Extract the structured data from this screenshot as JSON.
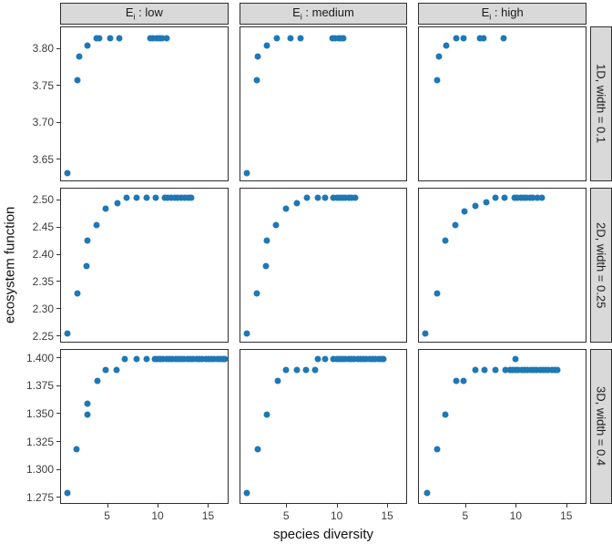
{
  "chart_data": {
    "type": "scatter",
    "x_label": "species diversity",
    "y_label": "ecosystem function",
    "point_color": "#1f78b4",
    "grid": "off",
    "legend": "none",
    "x_range": [
      0.35,
      17.0
    ],
    "x_ticks": [
      5,
      10,
      15
    ],
    "facet_cols": [
      {
        "base": "E",
        "sub": "i",
        "rest": " : low"
      },
      {
        "base": "E",
        "sub": "i",
        "rest": " : medium"
      },
      {
        "base": "E",
        "sub": "i",
        "rest": " : high"
      }
    ],
    "facet_rows": [
      {
        "label": "1D, width = 0.1",
        "y_range": [
          3.62,
          3.83
        ],
        "y_ticks": [
          "3.65",
          "3.70",
          "3.75",
          "3.80"
        ]
      },
      {
        "label": "2D, width = 0.25",
        "y_range": [
          2.238,
          2.522
        ],
        "y_ticks": [
          "2.25",
          "2.30",
          "2.35",
          "2.40",
          "2.45",
          "2.50"
        ]
      },
      {
        "label": "3D, width = 0.4",
        "y_range": [
          1.269,
          1.408
        ],
        "y_ticks": [
          "1.275",
          "1.300",
          "1.325",
          "1.350",
          "1.375",
          "1.400"
        ]
      }
    ],
    "panels": [
      {
        "row": 0,
        "col": 0,
        "points": [
          [
            1,
            3.63
          ],
          [
            2,
            3.757
          ],
          [
            2.2,
            3.79
          ],
          [
            3,
            3.805
          ],
          [
            3.9,
            3.815
          ],
          [
            4.2,
            3.815
          ],
          [
            5.3,
            3.815
          ],
          [
            6.2,
            3.815
          ],
          [
            9.3,
            3.815
          ],
          [
            9.6,
            3.815
          ],
          [
            9.9,
            3.815
          ],
          [
            10.2,
            3.815
          ],
          [
            10.5,
            3.815
          ],
          [
            10.9,
            3.815
          ]
        ]
      },
      {
        "row": 0,
        "col": 1,
        "points": [
          [
            1,
            3.63
          ],
          [
            2,
            3.757
          ],
          [
            2.1,
            3.79
          ],
          [
            3,
            3.805
          ],
          [
            4,
            3.815
          ],
          [
            5.4,
            3.815
          ],
          [
            6.4,
            3.815
          ],
          [
            9.6,
            3.815
          ],
          [
            9.9,
            3.815
          ],
          [
            10.2,
            3.815
          ],
          [
            10.4,
            3.815
          ],
          [
            10.7,
            3.815
          ]
        ]
      },
      {
        "row": 0,
        "col": 2,
        "points": [
          [
            2.1,
            3.757
          ],
          [
            2.3,
            3.79
          ],
          [
            3.1,
            3.805
          ],
          [
            4.1,
            3.815
          ],
          [
            4.8,
            3.815
          ],
          [
            6.4,
            3.815
          ],
          [
            6.8,
            3.815
          ],
          [
            8.8,
            3.815
          ]
        ]
      },
      {
        "row": 1,
        "col": 0,
        "points": [
          [
            1,
            2.253
          ],
          [
            2,
            2.328
          ],
          [
            2.9,
            2.378
          ],
          [
            3,
            2.425
          ],
          [
            3.9,
            2.455
          ],
          [
            4.8,
            2.485
          ],
          [
            6,
            2.495
          ],
          [
            6.9,
            2.505
          ],
          [
            7.9,
            2.505
          ],
          [
            8.9,
            2.505
          ],
          [
            9.8,
            2.505
          ],
          [
            10.7,
            2.505
          ],
          [
            11,
            2.505
          ],
          [
            11.35,
            2.505
          ],
          [
            11.7,
            2.505
          ],
          [
            12.05,
            2.505
          ],
          [
            12.4,
            2.505
          ],
          [
            12.75,
            2.505
          ],
          [
            13.1,
            2.505
          ],
          [
            13.4,
            2.505
          ]
        ]
      },
      {
        "row": 1,
        "col": 1,
        "points": [
          [
            1,
            2.253
          ],
          [
            2,
            2.328
          ],
          [
            2.9,
            2.378
          ],
          [
            3,
            2.425
          ],
          [
            3.9,
            2.455
          ],
          [
            4.9,
            2.485
          ],
          [
            6,
            2.495
          ],
          [
            7,
            2.505
          ],
          [
            8.1,
            2.505
          ],
          [
            8.9,
            2.505
          ],
          [
            9.7,
            2.505
          ],
          [
            10,
            2.505
          ],
          [
            10.3,
            2.505
          ],
          [
            10.6,
            2.505
          ],
          [
            10.9,
            2.505
          ],
          [
            11.2,
            2.505
          ],
          [
            11.5,
            2.505
          ],
          [
            11.9,
            2.505
          ]
        ]
      },
      {
        "row": 1,
        "col": 2,
        "points": [
          [
            1,
            2.253
          ],
          [
            2.1,
            2.328
          ],
          [
            3,
            2.425
          ],
          [
            4,
            2.455
          ],
          [
            4.9,
            2.48
          ],
          [
            6,
            2.49
          ],
          [
            7.1,
            2.497
          ],
          [
            8,
            2.505
          ],
          [
            8.9,
            2.505
          ],
          [
            9.9,
            2.505
          ],
          [
            10.2,
            2.505
          ],
          [
            10.5,
            2.505
          ],
          [
            10.8,
            2.505
          ],
          [
            11.1,
            2.505
          ],
          [
            11.4,
            2.505
          ],
          [
            11.7,
            2.505
          ],
          [
            12.2,
            2.505
          ],
          [
            12.6,
            2.505
          ]
        ]
      },
      {
        "row": 2,
        "col": 0,
        "points": [
          [
            1,
            1.278
          ],
          [
            1.9,
            1.318
          ],
          [
            3,
            1.349
          ],
          [
            3,
            1.359
          ],
          [
            4,
            1.38
          ],
          [
            4.8,
            1.39
          ],
          [
            5.9,
            1.39
          ],
          [
            6.7,
            1.4
          ],
          [
            7.9,
            1.4
          ],
          [
            8.9,
            1.4
          ],
          [
            9.7,
            1.4
          ],
          [
            10,
            1.4
          ],
          [
            10.3,
            1.4
          ],
          [
            10.6,
            1.4
          ],
          [
            10.9,
            1.4
          ],
          [
            11.2,
            1.4
          ],
          [
            11.5,
            1.4
          ],
          [
            11.8,
            1.4
          ],
          [
            12.1,
            1.4
          ],
          [
            12.4,
            1.4
          ],
          [
            12.7,
            1.4
          ],
          [
            13,
            1.4
          ],
          [
            13.3,
            1.4
          ],
          [
            13.6,
            1.4
          ],
          [
            13.9,
            1.4
          ],
          [
            14.2,
            1.4
          ],
          [
            14.5,
            1.4
          ],
          [
            14.8,
            1.4
          ],
          [
            15.1,
            1.4
          ],
          [
            15.4,
            1.4
          ],
          [
            15.7,
            1.4
          ],
          [
            16,
            1.4
          ],
          [
            16.3,
            1.4
          ],
          [
            16.6,
            1.4
          ],
          [
            16.8,
            1.4
          ]
        ]
      },
      {
        "row": 2,
        "col": 1,
        "points": [
          [
            1,
            1.278
          ],
          [
            2.1,
            1.318
          ],
          [
            3,
            1.349
          ],
          [
            4.1,
            1.38
          ],
          [
            4.9,
            1.39
          ],
          [
            6,
            1.39
          ],
          [
            6.9,
            1.39
          ],
          [
            7.9,
            1.39
          ],
          [
            8.1,
            1.4
          ],
          [
            8.9,
            1.4
          ],
          [
            9.7,
            1.4
          ],
          [
            10,
            1.4
          ],
          [
            10.3,
            1.4
          ],
          [
            10.6,
            1.4
          ],
          [
            10.9,
            1.4
          ],
          [
            11.2,
            1.4
          ],
          [
            11.5,
            1.4
          ],
          [
            11.8,
            1.4
          ],
          [
            12.1,
            1.4
          ],
          [
            12.4,
            1.4
          ],
          [
            12.7,
            1.4
          ],
          [
            13,
            1.4
          ],
          [
            13.3,
            1.4
          ],
          [
            13.6,
            1.4
          ],
          [
            13.9,
            1.4
          ],
          [
            14.2,
            1.4
          ],
          [
            14.5,
            1.4
          ],
          [
            14.7,
            1.4
          ]
        ]
      },
      {
        "row": 2,
        "col": 2,
        "points": [
          [
            1.1,
            1.278
          ],
          [
            2.1,
            1.318
          ],
          [
            3,
            1.349
          ],
          [
            4.1,
            1.38
          ],
          [
            4.8,
            1.38
          ],
          [
            6,
            1.39
          ],
          [
            6.9,
            1.39
          ],
          [
            8,
            1.39
          ],
          [
            9,
            1.39
          ],
          [
            9.4,
            1.39
          ],
          [
            9.7,
            1.39
          ],
          [
            10,
            1.39
          ],
          [
            10,
            1.4
          ],
          [
            10.3,
            1.39
          ],
          [
            10.6,
            1.39
          ],
          [
            10.9,
            1.39
          ],
          [
            11.2,
            1.39
          ],
          [
            11.5,
            1.39
          ],
          [
            11.8,
            1.39
          ],
          [
            12.1,
            1.39
          ],
          [
            12.4,
            1.39
          ],
          [
            12.7,
            1.39
          ],
          [
            13,
            1.39
          ],
          [
            13.3,
            1.39
          ],
          [
            13.6,
            1.39
          ],
          [
            13.9,
            1.39
          ],
          [
            14.2,
            1.39
          ]
        ]
      }
    ]
  }
}
